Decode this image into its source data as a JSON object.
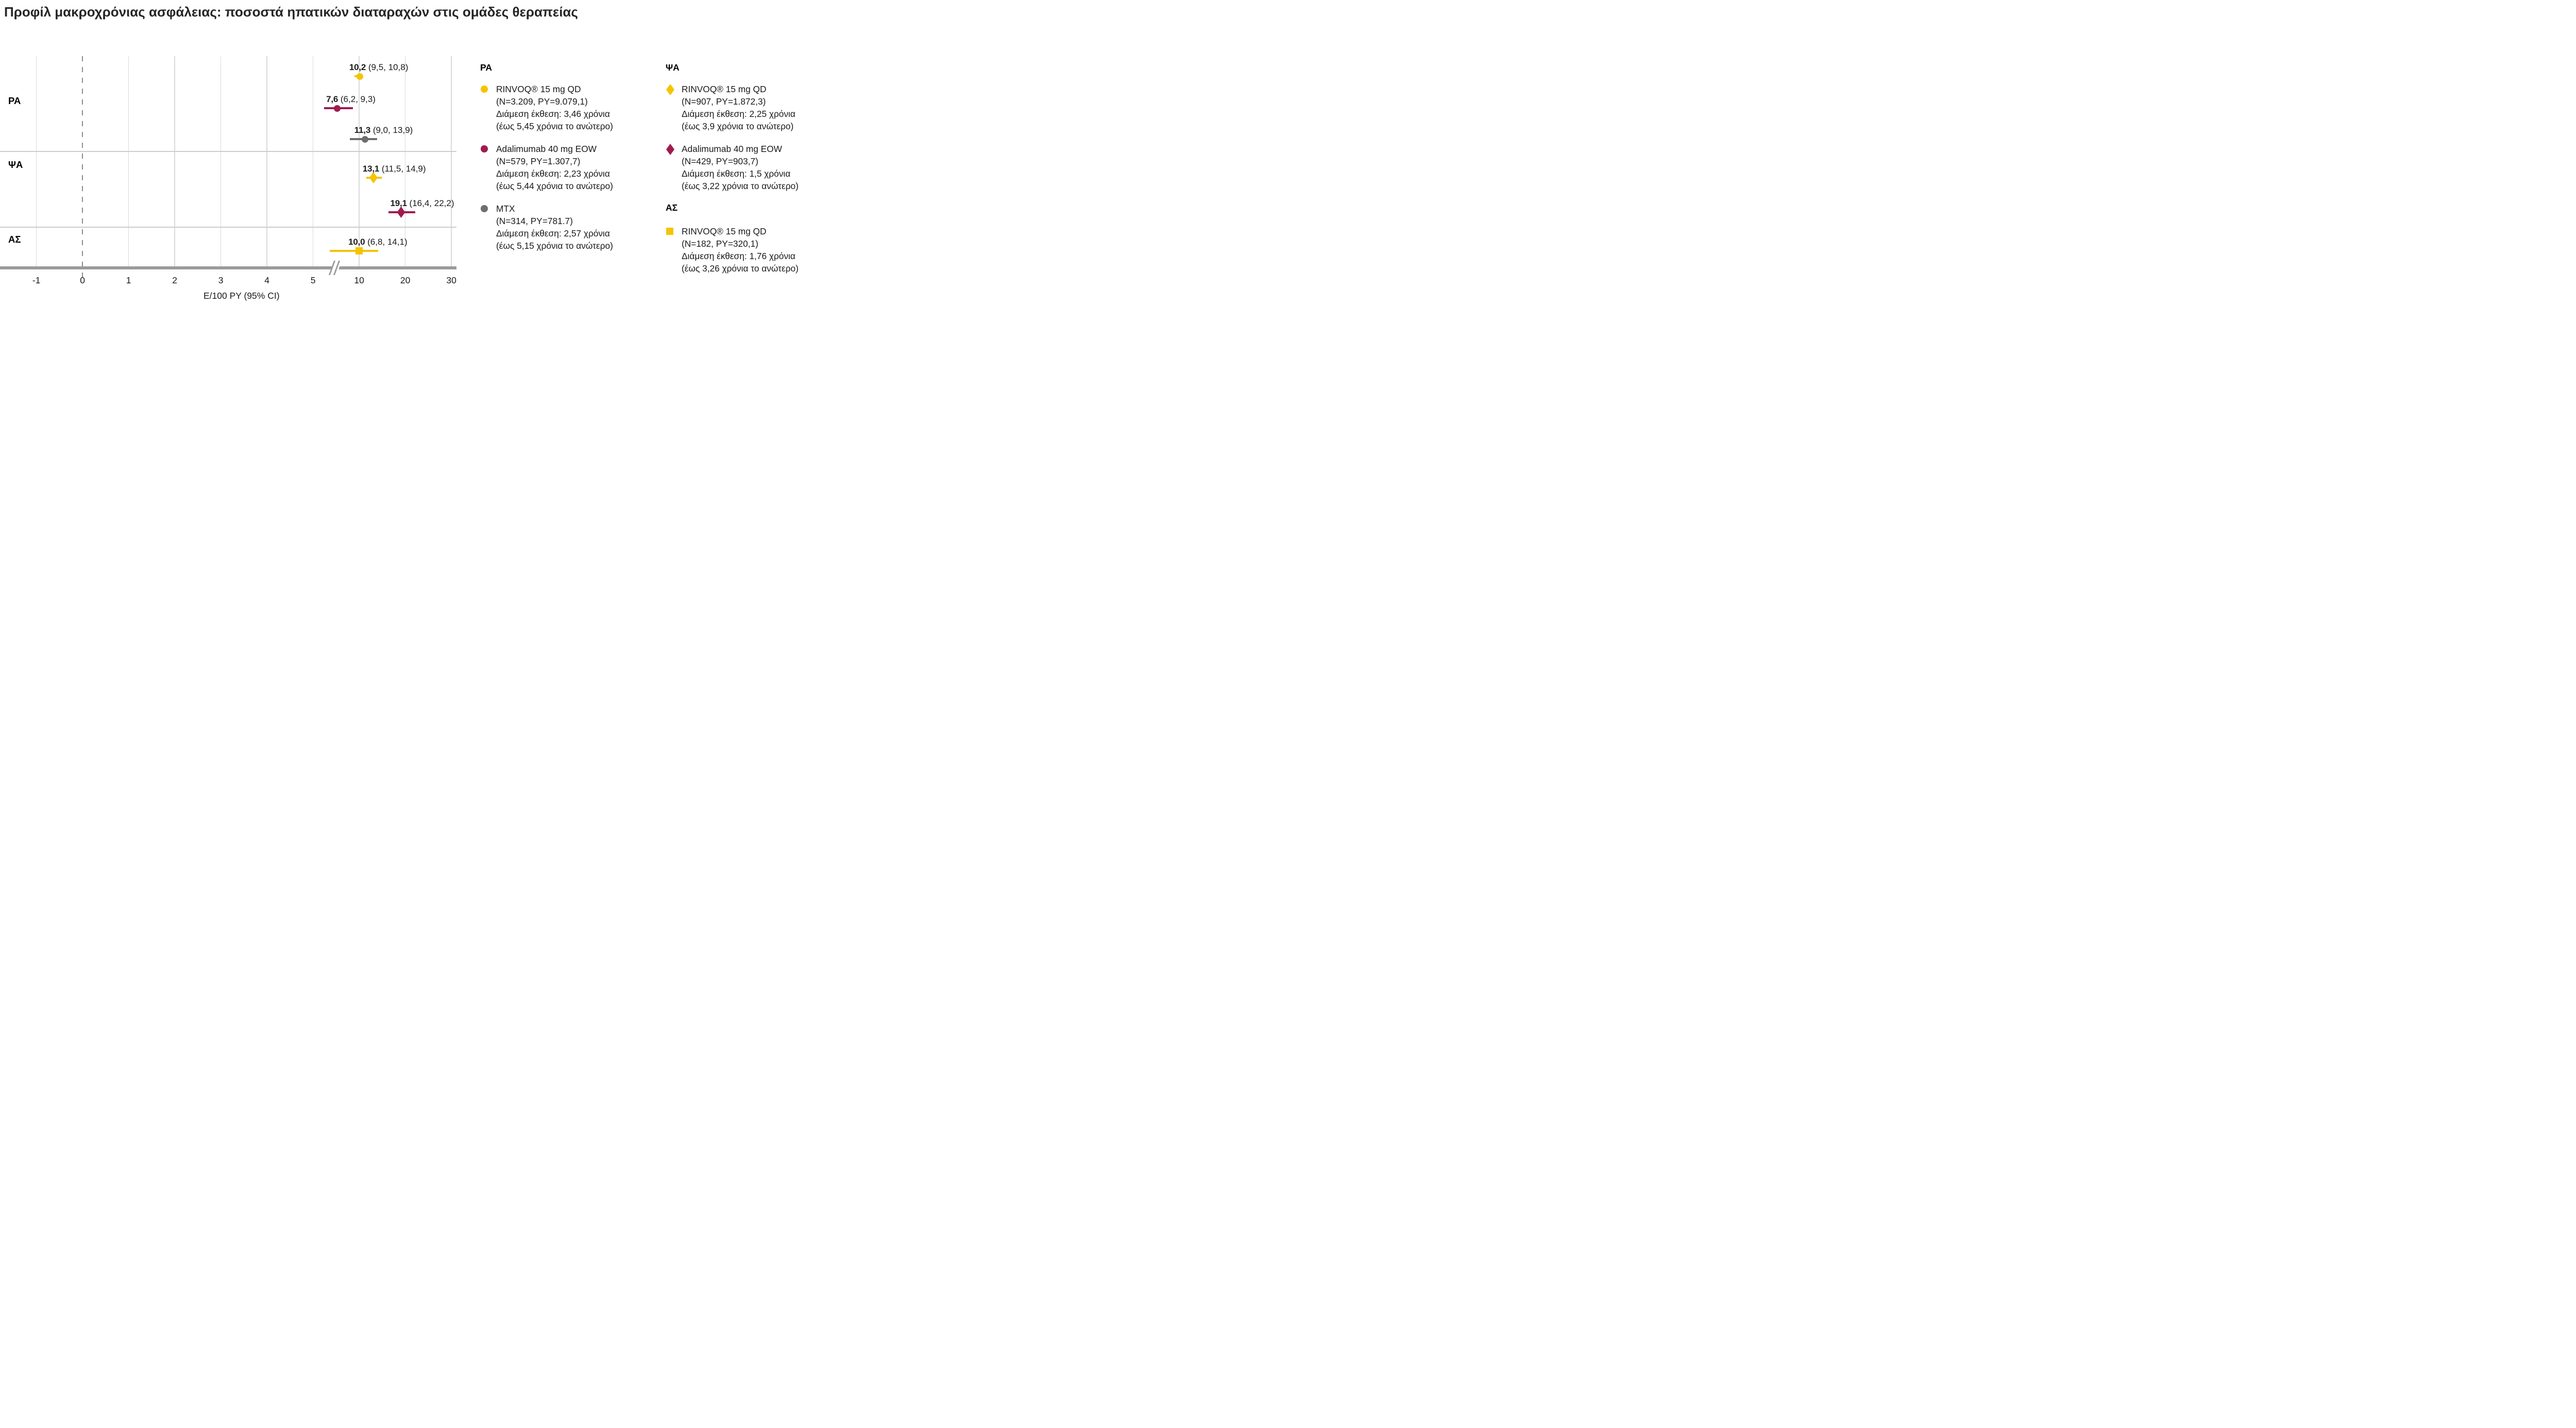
{
  "title": "Προφίλ μακροχρόνιας ασφάλειας: ποσοστά ηπατικών διαταραχών στις ομάδες θεραπείας",
  "colors": {
    "yellow": "#F5C400",
    "maroon": "#A01A4F",
    "gray": "#6E6E6E",
    "axis": "#9B9B9B",
    "grid": "#DADADA",
    "separator": "#CCCCCC",
    "dashed_zero": "#8A8A8A",
    "text": "#1A1A1A"
  },
  "chart_data": {
    "type": "scatter",
    "subtype": "forest-plot",
    "title": "Προφίλ μακροχρόνιας ασφάλειας: ποσοστά ηπατικών διαταραχών στις ομάδες θεραπείας",
    "xlabel": "E/100 PY (95% CI)",
    "x_ticks": [
      -1,
      0,
      1,
      2,
      3,
      4,
      5,
      10,
      20,
      30
    ],
    "x_tick_labels": [
      "-1",
      "0",
      "1",
      "2",
      "3",
      "4",
      "5",
      "10",
      "20",
      "30"
    ],
    "axis_break_between": [
      5,
      10
    ],
    "zero_reference_line": 0,
    "grid": "vertical-only",
    "groups": [
      "ΡΑ",
      "ΨΑ",
      "ΑΣ"
    ],
    "points": [
      {
        "group": "ΡΑ",
        "treatment": "RINVOQ 15 mg QD",
        "value": 10.2,
        "ci_low": 9.5,
        "ci_high": 10.8,
        "value_label": "10,2",
        "ci_label": "(9,5, 10,8)",
        "marker": "circle",
        "color": "yellow"
      },
      {
        "group": "ΡΑ",
        "treatment": "Adalimumab 40 mg EOW",
        "value": 7.6,
        "ci_low": 6.2,
        "ci_high": 9.3,
        "value_label": "7,6",
        "ci_label": "(6,2, 9,3)",
        "marker": "circle",
        "color": "maroon"
      },
      {
        "group": "ΡΑ",
        "treatment": "MTX",
        "value": 11.3,
        "ci_low": 9.0,
        "ci_high": 13.9,
        "value_label": "11,3",
        "ci_label": "(9,0, 13,9)",
        "marker": "circle",
        "color": "gray"
      },
      {
        "group": "ΨΑ",
        "treatment": "RINVOQ 15 mg QD",
        "value": 13.1,
        "ci_low": 11.5,
        "ci_high": 14.9,
        "value_label": "13,1",
        "ci_label": "(11,5, 14,9)",
        "marker": "diamond",
        "color": "yellow"
      },
      {
        "group": "ΨΑ",
        "treatment": "Adalimumab 40 mg EOW",
        "value": 19.1,
        "ci_low": 16.4,
        "ci_high": 22.2,
        "value_label": "19,1",
        "ci_label": "(16,4, 22,2)",
        "marker": "diamond",
        "color": "maroon"
      },
      {
        "group": "ΑΣ",
        "treatment": "RINVOQ 15 mg QD",
        "value": 10.0,
        "ci_low": 6.8,
        "ci_high": 14.1,
        "value_label": "10,0",
        "ci_label": "(6,8, 14,1)",
        "marker": "square",
        "color": "yellow"
      }
    ]
  },
  "axis": {
    "xlabel": "E/100 PY (95% CI)"
  },
  "row_labels": [
    "ΡΑ",
    "ΨΑ",
    "ΑΣ"
  ],
  "legend": {
    "columns": [
      {
        "blocks": [
          {
            "header": "ΡΑ"
          },
          {
            "marker": "circle",
            "color": "yellow",
            "lines": [
              "RINVOQ® 15 mg QD",
              "(N=3.209, PY=9.079,1)",
              "Διάμεση έκθεση: 3,46 χρόνια",
              "(έως 5,45 χρόνια το ανώτερο)"
            ]
          },
          {
            "marker": "circle",
            "color": "maroon",
            "lines": [
              "Adalimumab 40 mg EOW",
              "(N=579, PY=1.307,7)",
              "Διάμεση έκθεση: 2,23 χρόνια",
              "(έως 5,44 χρόνια το ανώτερο)"
            ]
          },
          {
            "marker": "circle",
            "color": "gray",
            "lines": [
              "MTX",
              "(N=314, PY=781.7)",
              "Διάμεση έκθεση: 2,57 χρόνια",
              "(έως 5,15 χρόνια το ανώτερο)"
            ]
          }
        ]
      },
      {
        "blocks": [
          {
            "header": "ΨΑ"
          },
          {
            "marker": "diamond",
            "color": "yellow",
            "lines": [
              "RINVOQ® 15 mg QD",
              "(N=907, PY=1.872,3)",
              "Διάμεση έκθεση: 2,25 χρόνια",
              "(έως 3,9 χρόνια το ανώτερο)"
            ]
          },
          {
            "marker": "diamond",
            "color": "maroon",
            "lines": [
              "Adalimumab 40 mg EOW",
              "(N=429, PY=903,7)",
              "Διάμεση έκθεση: 1,5 χρόνια",
              "(έως 3,22 χρόνια το ανώτερο)"
            ]
          },
          {
            "header": "ΑΣ"
          },
          {
            "marker": "square",
            "color": "yellow",
            "lines": [
              "RINVOQ® 15 mg QD",
              "(N=182, PY=320,1)",
              "Διάμεση έκθεση: 1,76 χρόνια",
              "(έως 3,26 χρόνια το ανώτερο)"
            ]
          }
        ]
      }
    ]
  }
}
